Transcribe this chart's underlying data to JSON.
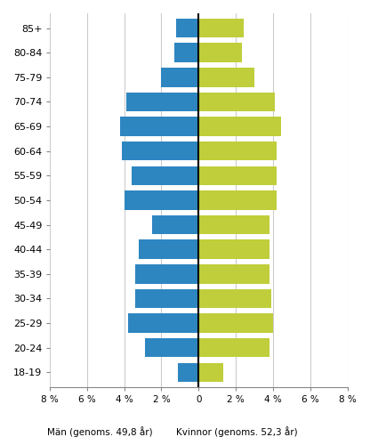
{
  "age_groups": [
    "18-19",
    "20-24",
    "25-29",
    "30-34",
    "35-39",
    "40-44",
    "45-49",
    "50-54",
    "55-59",
    "60-64",
    "65-69",
    "70-74",
    "75-79",
    "80-84",
    "85+"
  ],
  "men_values": [
    1.1,
    2.9,
    3.8,
    3.4,
    3.4,
    3.2,
    2.5,
    4.0,
    3.6,
    4.1,
    4.2,
    3.9,
    2.0,
    1.3,
    1.2
  ],
  "women_values": [
    1.3,
    3.8,
    4.0,
    3.9,
    3.8,
    3.8,
    3.8,
    4.2,
    4.2,
    4.2,
    4.4,
    4.1,
    3.0,
    2.3,
    2.4
  ],
  "men_color": "#2E86C1",
  "women_color": "#BFCE3A",
  "xlabel_men": "Män (genoms. 49,8 år)",
  "xlabel_women": "Kvinnor (genoms. 52,3 år)",
  "xlim": 8,
  "xtick_positions": [
    -8,
    -6,
    -4,
    -2,
    0,
    2,
    4,
    6,
    8
  ],
  "xtick_labels": [
    "8 %",
    "6 %",
    "4 %",
    "2 %",
    "0",
    "2 %",
    "4 %",
    "6 %",
    "8 %"
  ],
  "grid_color": "#CCCCCC",
  "background_color": "#FFFFFF",
  "bar_height": 0.78
}
